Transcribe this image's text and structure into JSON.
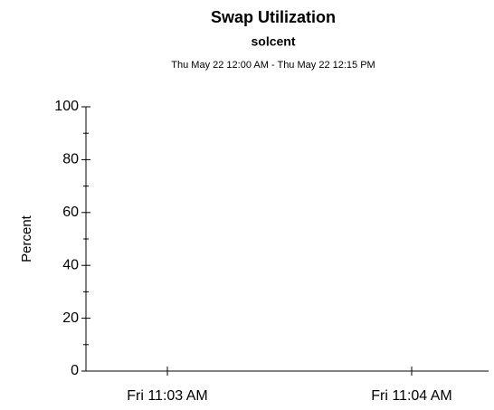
{
  "chart_data": {
    "type": "line",
    "title": "Swap Utilization",
    "subtitle": "solcent",
    "date_range": "Thu May 22 12:00 AM - Thu May 22 12:15 PM",
    "ylabel": "Percent",
    "ylim": [
      0,
      100
    ],
    "yticks": [
      0,
      20,
      40,
      60,
      80,
      100
    ],
    "yminorticks": [
      10,
      30,
      50,
      70,
      90
    ],
    "xticks": [
      "Fri 11:03 AM",
      "Fri 11:04 AM"
    ],
    "series": []
  }
}
